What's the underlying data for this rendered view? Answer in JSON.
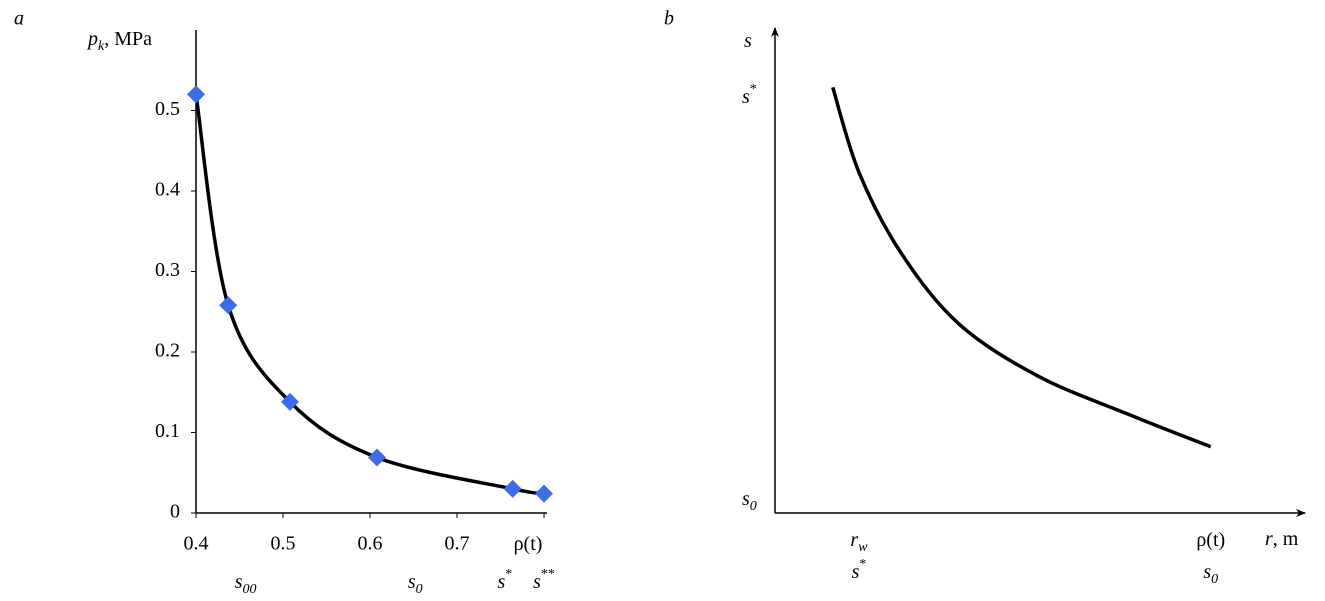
{
  "chart_data": [
    {
      "type": "scatter-line",
      "title": "a",
      "y_label": {
        "text": "p",
        "sub": "k",
        "rest": ", MPa"
      },
      "x": [
        0.4,
        0.437,
        0.508,
        0.608,
        0.764,
        0.8
      ],
      "values": [
        0.52,
        0.258,
        0.138,
        0.069,
        0.03,
        0.024
      ],
      "color": "#3d6bea",
      "line_color": "#000000",
      "xlim": [
        0.4,
        0.8
      ],
      "ylim": [
        0,
        0.6
      ],
      "xticks": [
        0.4,
        0.5,
        0.6,
        0.7,
        {
          "value": 0.8,
          "label": "ρ(t)"
        }
      ],
      "yticks": [
        0,
        0.1,
        0.2,
        0.3,
        0.4,
        0.5
      ],
      "x_annotations": [
        {
          "x": 0.457,
          "text": "s",
          "sub": "00"
        },
        {
          "x": 0.652,
          "text": "s",
          "sub": "0"
        },
        {
          "x": 0.755,
          "text": "s",
          "sup": "*"
        },
        {
          "x": 0.8,
          "text": "s",
          "sup": "**"
        }
      ]
    },
    {
      "type": "line",
      "title": "b",
      "y_label": {
        "text": "s"
      },
      "x_label": {
        "text": "r",
        "rest": ", m"
      },
      "x": [
        0.11,
        0.16,
        0.24,
        0.35,
        0.5,
        0.67,
        0.83
      ],
      "values": [
        0.9,
        0.72,
        0.55,
        0.4,
        0.29,
        0.21,
        0.14
      ],
      "color": "#000000",
      "xlim": [
        0,
        1
      ],
      "ylim": [
        0,
        1
      ],
      "xticks": [
        {
          "value": 0.16,
          "label": "r",
          "sub": "w"
        },
        {
          "value": 0.83,
          "label": "ρ(t)"
        }
      ],
      "yticks": [
        {
          "value": 0.88,
          "label": "s",
          "sup": "*"
        },
        {
          "value": 0.03,
          "label": "s",
          "sub": "0"
        }
      ],
      "x_annotations": [
        {
          "x": 0.16,
          "text": "s",
          "sup": "*"
        },
        {
          "x": 0.83,
          "text": "s",
          "sub": "0"
        }
      ]
    }
  ]
}
